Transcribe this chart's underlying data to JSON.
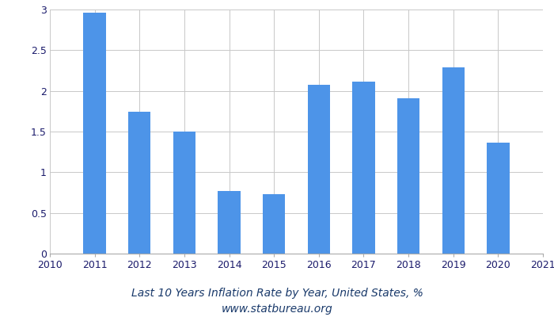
{
  "years": [
    2011,
    2012,
    2013,
    2014,
    2015,
    2016,
    2017,
    2018,
    2019,
    2020
  ],
  "values": [
    2.96,
    1.74,
    1.5,
    0.77,
    0.73,
    2.07,
    2.11,
    1.91,
    2.29,
    1.36
  ],
  "bar_color": "#4d94e8",
  "xlim": [
    2010,
    2021
  ],
  "ylim": [
    0,
    3.0
  ],
  "yticks": [
    0,
    0.5,
    1.0,
    1.5,
    2.0,
    2.5,
    3.0
  ],
  "xticks": [
    2010,
    2011,
    2012,
    2013,
    2014,
    2015,
    2016,
    2017,
    2018,
    2019,
    2020,
    2021
  ],
  "title_line1": "Last 10 Years Inflation Rate by Year, United States, %",
  "title_line2": "www.statbureau.org",
  "title_fontsize": 10,
  "tick_fontsize": 9,
  "bar_width": 0.5,
  "background_color": "#ffffff",
  "grid_color": "#c8c8c8",
  "title_color": "#1a3a6b",
  "tick_label_color": "#1a1a6b"
}
